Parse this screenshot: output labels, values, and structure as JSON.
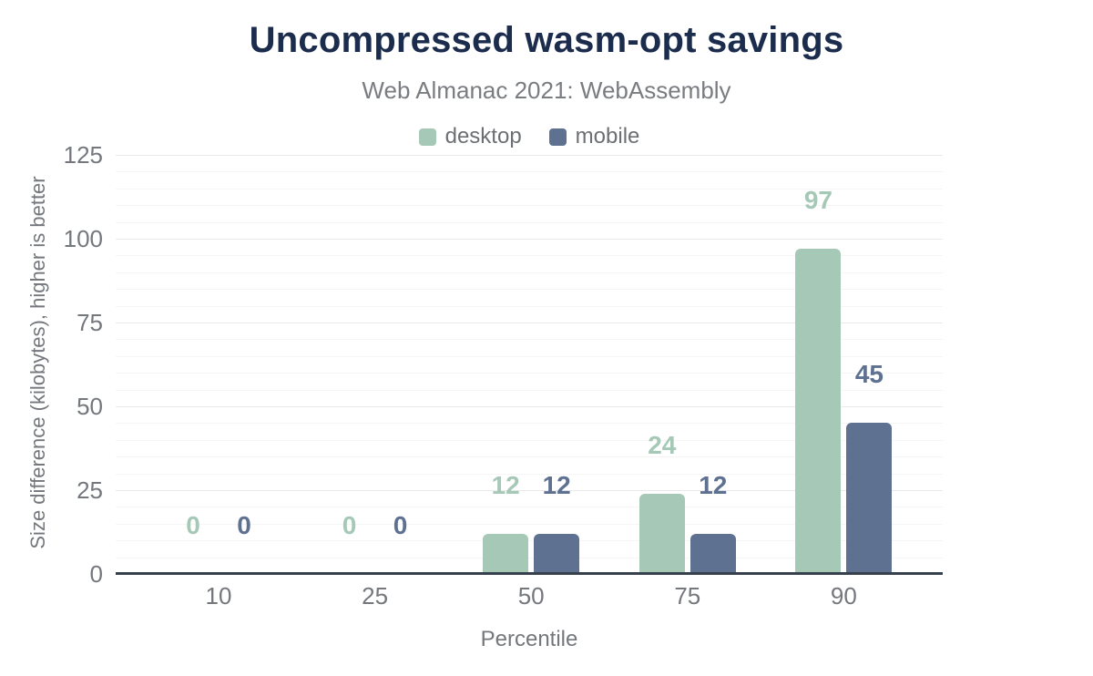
{
  "header": {
    "title": "Uncompressed wasm-opt savings",
    "subtitle": "Web Almanac 2021: WebAssembly"
  },
  "legend": [
    {
      "label": "desktop",
      "color": "#a6c9b7"
    },
    {
      "label": "mobile",
      "color": "#5e7190"
    }
  ],
  "chart_data": {
    "type": "bar",
    "title": "Uncompressed wasm-opt savings",
    "subtitle": "Web Almanac 2021: WebAssembly",
    "categories": [
      "10",
      "25",
      "50",
      "75",
      "90"
    ],
    "series": [
      {
        "name": "desktop",
        "color": "#a6c9b7",
        "values": [
          0,
          0,
          12,
          24,
          97
        ]
      },
      {
        "name": "mobile",
        "color": "#5e7190",
        "values": [
          0,
          0,
          12,
          12,
          45
        ]
      }
    ],
    "data_labels": [
      [
        "0",
        "0",
        "12",
        "24",
        "97"
      ],
      [
        "0",
        "0",
        "12",
        "12",
        "45"
      ]
    ],
    "xlabel": "Percentile",
    "ylabel": "Size difference (kilobytes), higher is better",
    "ylim": [
      0,
      125
    ],
    "yticks": [
      0,
      25,
      50,
      75,
      100,
      125
    ],
    "minor_gridline_interval": 5,
    "grid": true,
    "legend_position": "top",
    "render_hints": {
      "slivers": [
        {
          "series": "desktop",
          "category": "25"
        }
      ]
    }
  },
  "colors": {
    "title": "#1b2c4d",
    "axis_text": "#74777c",
    "axis_line": "#37404d",
    "gridline_minor": "#f5f5f5",
    "gridline_major": "#e9e9e9",
    "background": "#ffffff"
  }
}
